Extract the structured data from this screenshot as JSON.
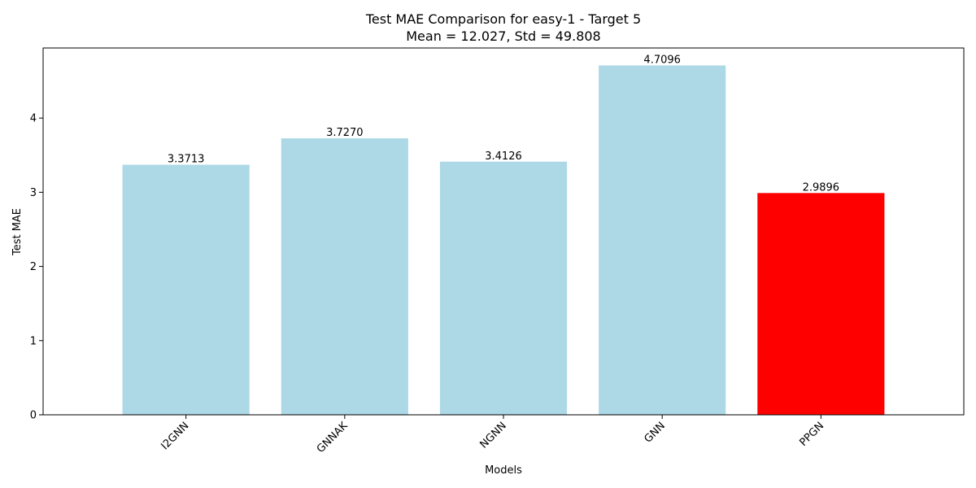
{
  "chart_data": {
    "type": "bar",
    "title": "Test MAE Comparison for easy-1 - Target 5",
    "subtitle": "Mean = 12.027, Std = 49.808",
    "xlabel": "Models",
    "ylabel": "Test MAE",
    "categories": [
      "I2GNN",
      "GNNAK",
      "NGNN",
      "GNN",
      "PPGN"
    ],
    "values": [
      3.3713,
      3.727,
      3.4126,
      4.7096,
      2.9896
    ],
    "value_labels": [
      "3.3713",
      "3.7270",
      "3.4126",
      "4.7096",
      "2.9896"
    ],
    "colors": [
      "#add8e6",
      "#add8e6",
      "#add8e6",
      "#add8e6",
      "#ff0000"
    ],
    "ylim": [
      0,
      4.945
    ],
    "yticks": [
      0,
      1,
      2,
      3,
      4
    ],
    "ytick_labels": [
      "0",
      "1",
      "2",
      "3",
      "4"
    ],
    "grid": false,
    "legend": false
  }
}
